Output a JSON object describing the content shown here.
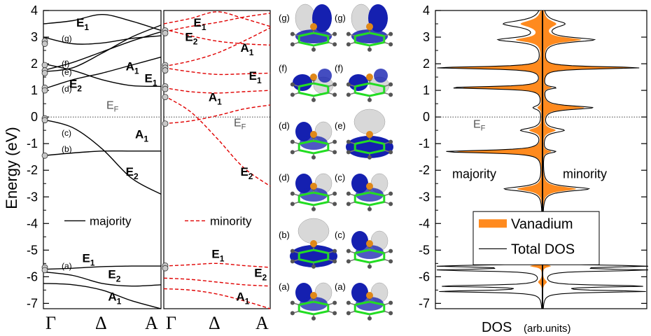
{
  "colors": {
    "majority_line": "#000000",
    "minority_line": "#e00000",
    "vanadium_fill": "#ff8a1e",
    "total_dos": "#000000",
    "orbital_blue": "#1520b0",
    "orbital_white": "#d8d8d8",
    "benzene_green": "#22dd22",
    "vanadium_atom": "#e08818"
  },
  "yaxis": {
    "label": "Energy (eV)",
    "range": [
      -7.2,
      4
    ],
    "ticks": [
      "4",
      "3",
      "2",
      "1",
      "0",
      "-1",
      "-2",
      "-3",
      "-4",
      "-5",
      "-6",
      "-7"
    ]
  },
  "bands_left": {
    "name": "majority",
    "x_ticks": [
      "Γ",
      "Δ",
      "A"
    ],
    "EF_label": [
      "E",
      "F"
    ],
    "state_labels": [
      {
        "text": "(g)",
        "y": 2.95
      },
      {
        "text": "(f)",
        "y": 2.0
      },
      {
        "text": "(e)",
        "y": 1.68
      },
      {
        "text": "(d)",
        "y": 1.05
      },
      {
        "text": "(c)",
        "y": -0.6
      },
      {
        "text": "(b)",
        "y": -1.2
      },
      {
        "text": "(a)",
        "y": -5.6
      }
    ],
    "sym_labels": [
      {
        "main": "E",
        "sub": "1",
        "x": 0.28,
        "y": 3.4
      },
      {
        "main": "A",
        "sub": "1",
        "x": 0.7,
        "y": 1.75
      },
      {
        "main": "E",
        "sub": "1",
        "x": 0.86,
        "y": 1.3
      },
      {
        "main": "E",
        "sub": "2",
        "x": 0.22,
        "y": 1.1
      },
      {
        "main": "A",
        "sub": "1",
        "x": 0.78,
        "y": -0.8
      },
      {
        "main": "E",
        "sub": "2",
        "x": 0.7,
        "y": -2.2
      },
      {
        "main": "E",
        "sub": "1",
        "x": 0.33,
        "y": -5.45
      },
      {
        "main": "E",
        "sub": "2",
        "x": 0.55,
        "y": -6.05
      },
      {
        "main": "A",
        "sub": "1",
        "x": 0.55,
        "y": -6.9
      }
    ],
    "bands": [
      {
        "k": [
          0,
          0.25,
          0.5,
          0.75,
          1
        ],
        "e": [
          3.5,
          3.62,
          3.85,
          3.6,
          3.25
        ]
      },
      {
        "k": [
          0,
          0.25,
          0.5,
          0.75,
          1
        ],
        "e": [
          3.0,
          2.75,
          2.78,
          2.95,
          3.05
        ]
      },
      {
        "k": [
          0,
          0.25,
          0.5,
          0.75,
          1
        ],
        "e": [
          1.75,
          2.05,
          2.45,
          2.85,
          3.2
        ]
      },
      {
        "k": [
          0,
          0.25,
          0.5,
          0.75,
          1
        ],
        "e": [
          1.7,
          1.85,
          2.4,
          3.0,
          3.45
        ]
      },
      {
        "k": [
          0,
          0.25,
          0.5,
          0.75,
          1
        ],
        "e": [
          1.05,
          1.4,
          1.65,
          1.95,
          2.25
        ]
      },
      {
        "k": [
          0,
          0.25,
          0.5,
          0.75,
          1
        ],
        "e": [
          2.0,
          1.75,
          1.4,
          1.18,
          1.15
        ]
      },
      {
        "k": [
          0,
          0.25,
          0.5,
          0.75,
          1
        ],
        "e": [
          -0.1,
          -0.4,
          -1.2,
          -2.3,
          -2.9
        ]
      },
      {
        "k": [
          0,
          0.25,
          0.5,
          0.75,
          1
        ],
        "e": [
          -1.45,
          -1.35,
          -1.28,
          -1.28,
          -1.28
        ]
      },
      {
        "k": [
          0,
          0.25,
          0.5,
          0.75,
          1
        ],
        "e": [
          -5.72,
          -5.68,
          -5.62,
          -5.6,
          -5.6
        ]
      },
      {
        "k": [
          0,
          0.25,
          0.5,
          0.75,
          1
        ],
        "e": [
          -5.82,
          -5.95,
          -6.25,
          -6.35,
          -6.3
        ]
      },
      {
        "k": [
          0,
          0.25,
          0.5,
          0.75,
          1
        ],
        "e": [
          -6.25,
          -6.3,
          -6.5,
          -6.9,
          -7.2
        ]
      }
    ],
    "points": [
      2.85,
      2.75,
      1.95,
      1.75,
      1.65,
      1.1,
      1.0,
      -0.05,
      -0.12,
      -1.45,
      -5.65,
      -5.75
    ]
  },
  "bands_right": {
    "name": "minority",
    "x_ticks": [
      "Γ",
      "Δ",
      "A"
    ],
    "EF_label": [
      "E",
      "F"
    ],
    "sym_labels": [
      {
        "main": "E",
        "sub": "1",
        "x": 0.28,
        "y": 3.4
      },
      {
        "main": "E",
        "sub": "2",
        "x": 0.2,
        "y": 2.85
      },
      {
        "main": "A",
        "sub": "1",
        "x": 0.72,
        "y": 2.45
      },
      {
        "main": "E",
        "sub": "1",
        "x": 0.8,
        "y": 1.4
      },
      {
        "main": "A",
        "sub": "1",
        "x": 0.42,
        "y": 0.6
      },
      {
        "main": "E",
        "sub": "2",
        "x": 0.72,
        "y": -2.2
      },
      {
        "main": "E",
        "sub": "1",
        "x": 0.45,
        "y": -5.3
      },
      {
        "main": "E",
        "sub": "2",
        "x": 0.85,
        "y": -6.0
      },
      {
        "main": "A",
        "sub": "1",
        "x": 0.68,
        "y": -6.9
      }
    ],
    "bands": [
      {
        "k": [
          0,
          0.25,
          0.5,
          0.75,
          1
        ],
        "e": [
          3.5,
          3.7,
          3.95,
          3.7,
          3.4
        ]
      },
      {
        "k": [
          0,
          0.25,
          0.5,
          0.75,
          1
        ],
        "e": [
          3.3,
          3.05,
          2.85,
          2.75,
          2.7
        ]
      },
      {
        "k": [
          0,
          0.25,
          0.5,
          0.75,
          1
        ],
        "e": [
          3.2,
          3.4,
          3.55,
          3.75,
          3.9
        ]
      },
      {
        "k": [
          0,
          0.25,
          0.5,
          0.75,
          1
        ],
        "e": [
          1.9,
          2.1,
          2.4,
          2.85,
          3.35
        ]
      },
      {
        "k": [
          0,
          0.25,
          0.5,
          0.75,
          1
        ],
        "e": [
          1.85,
          1.7,
          1.6,
          1.62,
          1.65
        ]
      },
      {
        "k": [
          0,
          0.25,
          0.5,
          0.75,
          1
        ],
        "e": [
          1.1,
          0.95,
          0.9,
          0.95,
          1.0
        ]
      },
      {
        "k": [
          0,
          0.25,
          0.5,
          0.75,
          1
        ],
        "e": [
          0.8,
          0.2,
          -0.8,
          -1.9,
          -2.6
        ]
      },
      {
        "k": [
          0,
          0.25,
          0.5,
          0.75,
          1
        ],
        "e": [
          -0.25,
          -0.15,
          0.05,
          0.3,
          0.45
        ]
      },
      {
        "k": [
          0,
          0.25,
          0.5,
          0.75,
          1
        ],
        "e": [
          -5.6,
          -5.55,
          -5.5,
          -5.58,
          -5.65
        ]
      },
      {
        "k": [
          0,
          0.25,
          0.5,
          0.75,
          1
        ],
        "e": [
          -6.05,
          -6.1,
          -6.2,
          -6.3,
          -6.35
        ]
      },
      {
        "k": [
          0,
          0.25,
          0.5,
          0.75,
          1
        ],
        "e": [
          -6.45,
          -6.5,
          -6.65,
          -6.9,
          -7.2
        ]
      }
    ],
    "points": [
      3.25,
      3.15,
      1.95,
      1.85,
      1.75,
      1.15,
      1.05,
      0.75,
      -0.25,
      -5.58,
      -5.68
    ]
  },
  "orbitals": {
    "left_labels": [
      "(g)",
      "(f)",
      "(d)",
      "(d)",
      "(b)",
      "(a)"
    ],
    "right_labels": [
      "(g)",
      "(f)",
      "(e)",
      "(c)",
      "(c)",
      "(a)"
    ]
  },
  "chart_data": {
    "type": "area",
    "xlabel": "DOS",
    "xlabel_unit": "(arb.units)",
    "ylabel": "Energy (eV)",
    "ylim": [
      -7.2,
      4
    ],
    "grid": false,
    "EF_label": [
      "E",
      "F"
    ],
    "annotations": [
      "majority",
      "minority"
    ],
    "legend": {
      "placement": "lower-right",
      "entries": [
        "Vanadium",
        "Total DOS"
      ]
    },
    "series": [
      {
        "name": "Vanadium",
        "peaks": [
          {
            "e": 3.5,
            "maj": 0.5,
            "min": 0.3,
            "w": 0.15
          },
          {
            "e": 2.9,
            "maj": 0.6,
            "min": 0.9,
            "w": 0.1
          },
          {
            "e": 1.85,
            "maj": 2.3,
            "min": 2.2,
            "w": 0.05
          },
          {
            "e": 1.1,
            "maj": 2.0,
            "min": 0.2,
            "w": 0.05
          },
          {
            "e": 0.35,
            "maj": 0.1,
            "min": 1.0,
            "w": 0.08
          },
          {
            "e": -0.5,
            "maj": 0.3,
            "min": 0.3,
            "w": 0.1
          },
          {
            "e": -1.3,
            "maj": 2.1,
            "min": 0.2,
            "w": 0.06
          },
          {
            "e": -2.7,
            "maj": 0.6,
            "min": 0.8,
            "w": 0.1
          },
          {
            "e": -5.6,
            "maj": 0.3,
            "min": 0.2,
            "w": 0.05
          },
          {
            "e": -6.2,
            "maj": 0.1,
            "min": 0.1,
            "w": 0.1
          }
        ]
      },
      {
        "name": "Total DOS",
        "peaks": [
          {
            "e": 3.5,
            "maj": 0.9,
            "min": 0.5,
            "w": 0.15
          },
          {
            "e": 2.9,
            "maj": 1.0,
            "min": 1.2,
            "w": 0.1
          },
          {
            "e": 1.85,
            "maj": 2.5,
            "min": 2.3,
            "w": 0.05
          },
          {
            "e": 1.1,
            "maj": 2.2,
            "min": 0.3,
            "w": 0.05
          },
          {
            "e": 0.35,
            "maj": 0.2,
            "min": 1.2,
            "w": 0.08
          },
          {
            "e": -0.5,
            "maj": 0.5,
            "min": 0.5,
            "w": 0.1
          },
          {
            "e": -1.3,
            "maj": 2.3,
            "min": 0.3,
            "w": 0.06
          },
          {
            "e": -2.7,
            "maj": 0.9,
            "min": 1.1,
            "w": 0.1
          },
          {
            "e": -5.6,
            "maj": 2.4,
            "min": 2.4,
            "w": 0.04
          },
          {
            "e": -5.75,
            "maj": 2.4,
            "min": 2.4,
            "w": 0.04
          },
          {
            "e": -6.35,
            "maj": 2.4,
            "min": 2.4,
            "w": 0.04
          },
          {
            "e": -6.55,
            "maj": 2.4,
            "min": 2.4,
            "w": 0.04
          }
        ]
      }
    ],
    "xlim": [
      -2.5,
      2.5
    ],
    "yticks": [
      "4",
      "3",
      "2",
      "1",
      "0",
      "-1",
      "-2",
      "-3",
      "-4",
      "-5",
      "-6",
      "-7"
    ]
  }
}
